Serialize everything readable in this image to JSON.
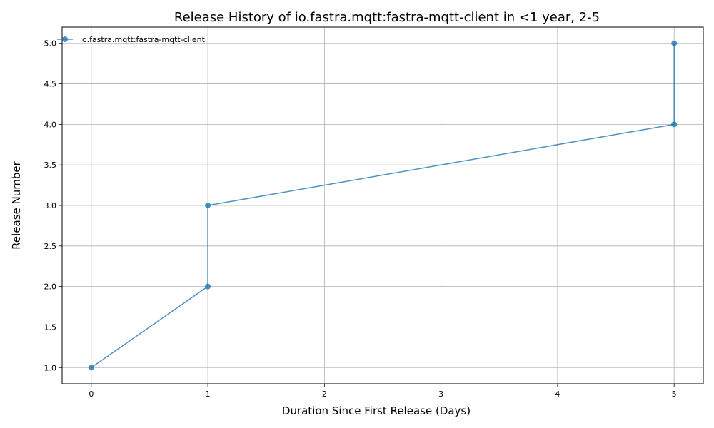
{
  "chart_data": {
    "type": "line",
    "title": "Release History of io.fastra.mqtt:fastra-mqtt-client in <1 year, 2-5",
    "xlabel": "Duration Since First Release (Days)",
    "ylabel": "Release Number",
    "xlim": [
      -0.25,
      5.25
    ],
    "ylim": [
      0.8,
      5.2
    ],
    "xticks": [
      0,
      1,
      2,
      3,
      4,
      5
    ],
    "xtick_labels": [
      "0",
      "1",
      "2",
      "3",
      "4",
      "5"
    ],
    "yticks": [
      1.0,
      1.5,
      2.0,
      2.5,
      3.0,
      3.5,
      4.0,
      4.5,
      5.0
    ],
    "ytick_labels": [
      "1.0",
      "1.5",
      "2.0",
      "2.5",
      "3.0",
      "3.5",
      "4.0",
      "4.5",
      "5.0"
    ],
    "grid": true,
    "legend_position": "top-left",
    "series": [
      {
        "name": "io.fastra.mqtt:fastra-mqtt-client",
        "color": "#1f77b4",
        "x": [
          0,
          1,
          1,
          5,
          5
        ],
        "y": [
          1,
          2,
          3,
          4,
          5
        ]
      }
    ]
  }
}
